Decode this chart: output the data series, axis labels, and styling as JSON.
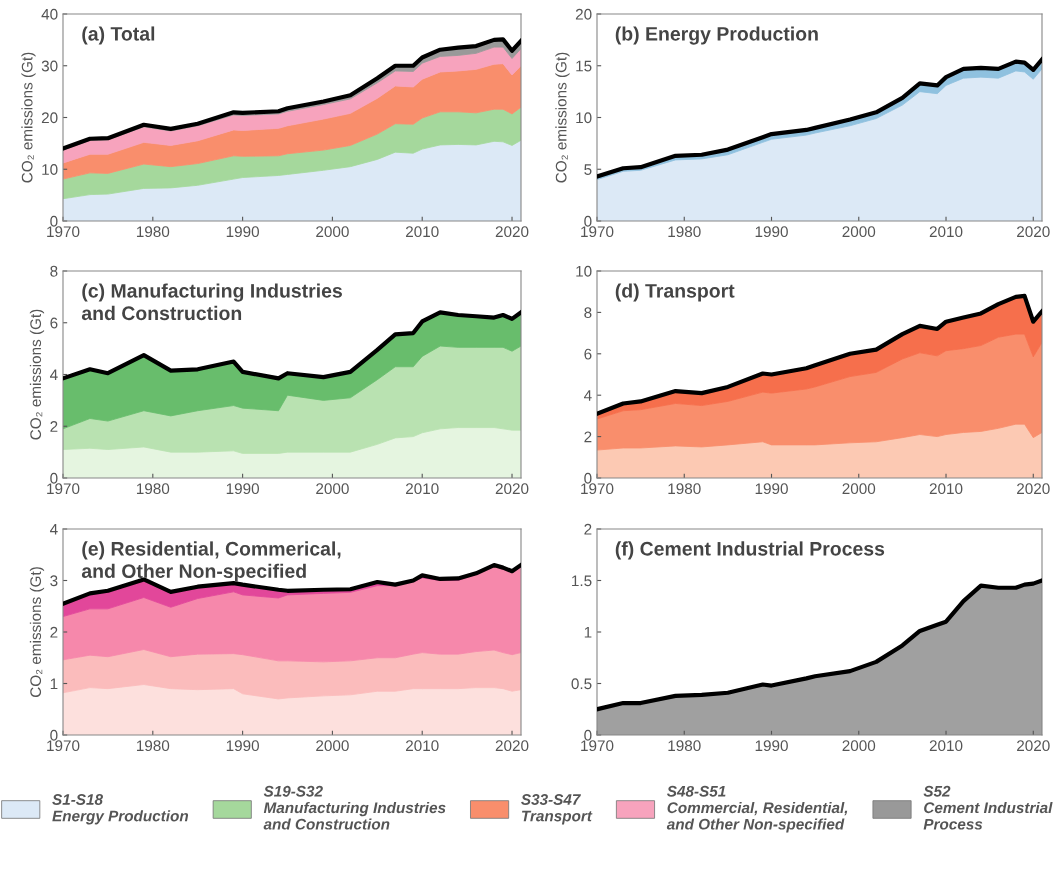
{
  "chart_data": [
    {
      "type": "area",
      "stacked": true,
      "title": "(a) Total",
      "ylabel": "CO₂ emissions (Gt)",
      "xlim": [
        1970,
        2021
      ],
      "xticks": [
        1970,
        1980,
        1990,
        2000,
        2010,
        2020
      ],
      "ylim": [
        0,
        40
      ],
      "yticks": [
        0,
        10,
        20,
        30,
        40
      ],
      "legend": "bottom",
      "x": [
        1970,
        1973,
        1975,
        1979,
        1982,
        1985,
        1989,
        1990,
        1994,
        1995,
        1999,
        2002,
        2005,
        2007,
        2009,
        2010,
        2012,
        2014,
        2016,
        2018,
        2019,
        2020,
        2021
      ],
      "series": [
        {
          "name": "S1-S18\nEnergy Production",
          "color": "#dce9f6",
          "values": [
            4.3,
            5.1,
            5.2,
            6.3,
            6.4,
            6.9,
            8.1,
            8.4,
            8.8,
            9.0,
            9.8,
            10.5,
            11.9,
            13.3,
            13.1,
            13.9,
            14.7,
            14.8,
            14.7,
            15.4,
            15.3,
            14.6,
            15.6
          ]
        },
        {
          "name": "S19-S32\nManufacturing Industries\nand Construction",
          "color": "#a5d89c",
          "values": [
            3.8,
            4.2,
            4.0,
            4.7,
            4.1,
            4.2,
            4.5,
            4.1,
            3.8,
            4.0,
            3.9,
            4.1,
            4.9,
            5.5,
            5.6,
            6.0,
            6.4,
            6.3,
            6.2,
            6.2,
            6.3,
            6.1,
            6.4
          ]
        },
        {
          "name": "S33-S47\nTransport",
          "color": "#f98e6c",
          "values": [
            3.1,
            3.6,
            3.7,
            4.2,
            4.1,
            4.4,
            5.0,
            5.0,
            5.3,
            5.4,
            6.0,
            6.2,
            6.9,
            7.3,
            7.2,
            7.5,
            7.7,
            7.9,
            8.4,
            8.7,
            8.8,
            7.5,
            8.0
          ]
        },
        {
          "name": "S48-S51\nCommercial, Residential,\nand Other Non-specified",
          "color": "#f7a3bd",
          "values": [
            2.5,
            2.7,
            2.8,
            3.0,
            2.8,
            2.9,
            2.9,
            2.9,
            2.8,
            2.8,
            2.8,
            2.8,
            3.0,
            2.9,
            3.0,
            3.1,
            3.0,
            3.0,
            3.1,
            3.3,
            3.2,
            3.2,
            3.3
          ]
        },
        {
          "name": "S52\nCement Industrial\nProcess",
          "color": "#999999",
          "values": [
            0.3,
            0.3,
            0.3,
            0.4,
            0.4,
            0.4,
            0.5,
            0.5,
            0.5,
            0.6,
            0.6,
            0.7,
            0.9,
            1.0,
            1.1,
            1.1,
            1.3,
            1.5,
            1.4,
            1.4,
            1.5,
            1.5,
            1.5
          ]
        }
      ]
    },
    {
      "type": "area",
      "stacked": true,
      "title": "(b) Energy Production",
      "ylabel": "CO₂ emissions (Gt)",
      "xlim": [
        1970,
        2021
      ],
      "xticks": [
        1970,
        1980,
        1990,
        2000,
        2010,
        2020
      ],
      "ylim": [
        0,
        20
      ],
      "yticks": [
        0,
        5,
        10,
        15,
        20
      ],
      "x": [
        1970,
        1973,
        1975,
        1979,
        1982,
        1985,
        1989,
        1990,
        1994,
        1995,
        1999,
        2002,
        2005,
        2007,
        2009,
        2010,
        2012,
        2014,
        2016,
        2018,
        2019,
        2020,
        2021
      ],
      "series": [
        {
          "color": "#dce9f6",
          "values": [
            4.0,
            4.8,
            4.9,
            5.9,
            6.0,
            6.4,
            7.6,
            7.9,
            8.3,
            8.5,
            9.2,
            9.9,
            11.2,
            12.5,
            12.3,
            13.1,
            13.8,
            13.9,
            13.8,
            14.5,
            14.4,
            13.7,
            14.7
          ]
        },
        {
          "color": "#8fc1df",
          "values": [
            0.3,
            0.3,
            0.3,
            0.4,
            0.4,
            0.5,
            0.5,
            0.5,
            0.5,
            0.5,
            0.6,
            0.6,
            0.7,
            0.8,
            0.8,
            0.8,
            0.9,
            0.9,
            0.9,
            0.9,
            0.9,
            0.9,
            0.9
          ]
        }
      ]
    },
    {
      "type": "area",
      "stacked": true,
      "title": "(c) Manufacturing Industries\nand Construction",
      "ylabel": "CO₂ emissions (Gt)",
      "xlim": [
        1970,
        2021
      ],
      "xticks": [
        1970,
        1980,
        1990,
        2000,
        2010,
        2020
      ],
      "ylim": [
        0,
        8
      ],
      "yticks": [
        0,
        2,
        4,
        6,
        8
      ],
      "x": [
        1970,
        1973,
        1975,
        1979,
        1982,
        1985,
        1989,
        1990,
        1994,
        1995,
        1999,
        2002,
        2005,
        2007,
        2009,
        2010,
        2012,
        2014,
        2016,
        2018,
        2019,
        2020,
        2021
      ],
      "series": [
        {
          "color": "#e5f5e0",
          "values": [
            1.1,
            1.15,
            1.1,
            1.2,
            1.0,
            1.0,
            1.05,
            0.95,
            0.95,
            1.0,
            1.0,
            1.0,
            1.3,
            1.55,
            1.6,
            1.75,
            1.9,
            1.95,
            1.95,
            1.95,
            1.9,
            1.85,
            1.85
          ]
        },
        {
          "color": "#b9e2b1",
          "values": [
            0.8,
            1.15,
            1.1,
            1.4,
            1.4,
            1.6,
            1.75,
            1.75,
            1.65,
            2.2,
            2.0,
            2.1,
            2.5,
            2.75,
            2.7,
            2.95,
            3.2,
            3.1,
            3.1,
            3.1,
            3.15,
            3.05,
            3.25
          ]
        },
        {
          "color": "#68bd6c",
          "values": [
            1.95,
            1.9,
            1.85,
            2.15,
            1.75,
            1.6,
            1.7,
            1.4,
            1.25,
            0.85,
            0.9,
            1.0,
            1.15,
            1.25,
            1.3,
            1.35,
            1.3,
            1.25,
            1.2,
            1.15,
            1.25,
            1.25,
            1.3
          ]
        }
      ]
    },
    {
      "type": "area",
      "stacked": true,
      "title": "(d) Transport",
      "xlim": [
        1970,
        2021
      ],
      "xticks": [
        1970,
        1980,
        1990,
        2000,
        2010,
        2020
      ],
      "ylim": [
        0,
        10
      ],
      "yticks": [
        0,
        2,
        4,
        6,
        8,
        10
      ],
      "x": [
        1970,
        1973,
        1975,
        1979,
        1982,
        1985,
        1989,
        1990,
        1994,
        1995,
        1999,
        2002,
        2005,
        2007,
        2009,
        2010,
        2012,
        2014,
        2016,
        2018,
        2019,
        2020,
        2021
      ],
      "series": [
        {
          "color": "#fcc9b3",
          "values": [
            1.35,
            1.45,
            1.45,
            1.55,
            1.5,
            1.6,
            1.75,
            1.6,
            1.6,
            1.6,
            1.7,
            1.75,
            1.95,
            2.1,
            2.0,
            2.1,
            2.2,
            2.25,
            2.4,
            2.6,
            2.6,
            1.95,
            2.2
          ]
        },
        {
          "color": "#f98e6c",
          "values": [
            1.5,
            1.8,
            1.85,
            2.05,
            2.0,
            2.1,
            2.4,
            2.5,
            2.7,
            2.8,
            3.2,
            3.35,
            3.8,
            3.95,
            3.9,
            4.05,
            4.05,
            4.15,
            4.4,
            4.35,
            4.35,
            3.9,
            4.35
          ]
        },
        {
          "color": "#f66f4c",
          "values": [
            0.25,
            0.35,
            0.4,
            0.6,
            0.6,
            0.7,
            0.9,
            0.9,
            1.0,
            1.05,
            1.1,
            1.1,
            1.2,
            1.3,
            1.3,
            1.4,
            1.5,
            1.55,
            1.6,
            1.8,
            1.85,
            1.7,
            1.5
          ]
        }
      ]
    },
    {
      "type": "area",
      "stacked": true,
      "title": "(e) Residential, Commerical,\nand Other Non-specified",
      "ylabel": "CO₂ emissions (Gt)",
      "xlim": [
        1970,
        2021
      ],
      "xticks": [
        1970,
        1980,
        1990,
        2000,
        2010,
        2020
      ],
      "ylim": [
        0,
        4
      ],
      "yticks": [
        0,
        1,
        2,
        3,
        4
      ],
      "x": [
        1970,
        1973,
        1975,
        1979,
        1982,
        1985,
        1989,
        1990,
        1994,
        1995,
        1999,
        2002,
        2005,
        2007,
        2009,
        2010,
        2012,
        2014,
        2016,
        2018,
        2019,
        2020,
        2021
      ],
      "series": [
        {
          "color": "#fde0dd",
          "values": [
            0.82,
            0.92,
            0.9,
            0.98,
            0.9,
            0.88,
            0.9,
            0.8,
            0.7,
            0.72,
            0.76,
            0.78,
            0.85,
            0.85,
            0.9,
            0.9,
            0.9,
            0.9,
            0.92,
            0.92,
            0.9,
            0.85,
            0.88
          ]
        },
        {
          "color": "#fbbcbc",
          "values": [
            0.64,
            0.63,
            0.62,
            0.68,
            0.62,
            0.69,
            0.68,
            0.76,
            0.74,
            0.72,
            0.66,
            0.66,
            0.65,
            0.65,
            0.67,
            0.7,
            0.67,
            0.67,
            0.7,
            0.73,
            0.7,
            0.71,
            0.72
          ]
        },
        {
          "color": "#f688ab",
          "values": [
            0.84,
            0.9,
            0.93,
            1.01,
            0.96,
            1.08,
            1.2,
            1.16,
            1.22,
            1.28,
            1.33,
            1.33,
            1.4,
            1.4,
            1.41,
            1.45,
            1.43,
            1.43,
            1.5,
            1.63,
            1.62,
            1.6,
            1.67
          ]
        },
        {
          "color": "#e2479a",
          "values": [
            0.25,
            0.3,
            0.35,
            0.35,
            0.3,
            0.23,
            0.17,
            0.2,
            0.16,
            0.08,
            0.07,
            0.06,
            0.07,
            0.02,
            0.02,
            0.05,
            0.03,
            0.04,
            0.02,
            0.02,
            0.03,
            0.02,
            0.03
          ]
        }
      ]
    },
    {
      "type": "area",
      "stacked": true,
      "title": "(f) Cement Industrial Process",
      "xlim": [
        1970,
        2021
      ],
      "xticks": [
        1970,
        1980,
        1990,
        2000,
        2010,
        2020
      ],
      "ylim": [
        0,
        2
      ],
      "yticks": [
        0,
        0.5,
        1,
        1.5,
        2
      ],
      "x": [
        1970,
        1973,
        1975,
        1979,
        1982,
        1985,
        1989,
        1990,
        1994,
        1995,
        1999,
        2002,
        2005,
        2007,
        2009,
        2010,
        2012,
        2014,
        2016,
        2018,
        2019,
        2020,
        2021
      ],
      "series": [
        {
          "color": "#a0a0a0",
          "values": [
            0.25,
            0.31,
            0.31,
            0.38,
            0.39,
            0.41,
            0.49,
            0.48,
            0.55,
            0.57,
            0.62,
            0.71,
            0.87,
            1.01,
            1.07,
            1.1,
            1.3,
            1.45,
            1.43,
            1.43,
            1.46,
            1.47,
            1.5
          ]
        }
      ]
    }
  ]
}
